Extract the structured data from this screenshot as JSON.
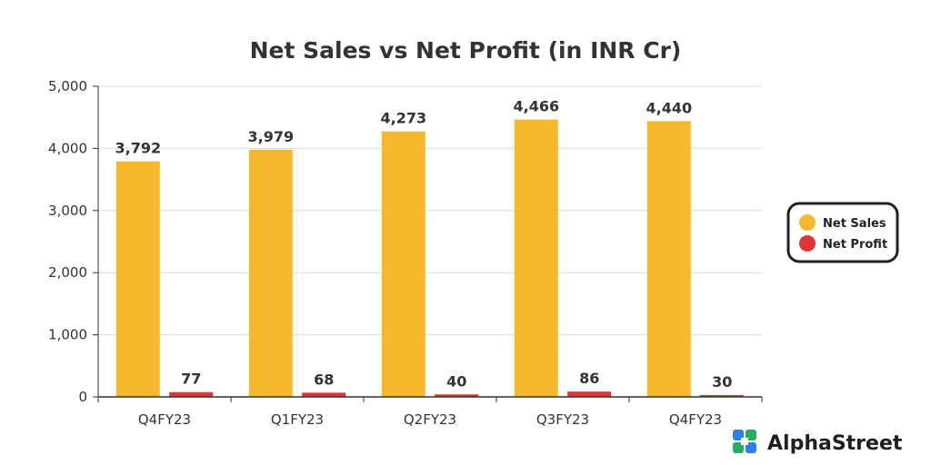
{
  "chart_data": {
    "type": "bar",
    "title": "Net Sales vs Net Profit (in INR Cr)",
    "categories": [
      "Q4FY23",
      "Q1FY23",
      "Q2FY23",
      "Q3FY23",
      "Q4FY23"
    ],
    "series": [
      {
        "name": "Net Sales",
        "values": [
          3792,
          3979,
          4273,
          4466,
          4440
        ],
        "labels": [
          "3,792",
          "3,979",
          "4,273",
          "4,466",
          "4,440"
        ],
        "color": "#F6B92B"
      },
      {
        "name": "Net Profit",
        "values": [
          77,
          68,
          40,
          86,
          30
        ],
        "labels": [
          "77",
          "68",
          "40",
          "86",
          "30"
        ],
        "color": "#E03535"
      }
    ],
    "ylim": [
      0,
      5000
    ],
    "yticks": [
      0,
      1000,
      2000,
      3000,
      4000,
      5000
    ],
    "ytick_labels": [
      "0",
      "1,000",
      "2,000",
      "3,000",
      "4,000",
      "5,000"
    ],
    "grid": true,
    "legend_position": "right"
  },
  "brand": {
    "name": "AlphaStreet",
    "icon": "alphastreet-logo-icon",
    "colors": [
      "#2F80ED",
      "#27AE60"
    ]
  }
}
